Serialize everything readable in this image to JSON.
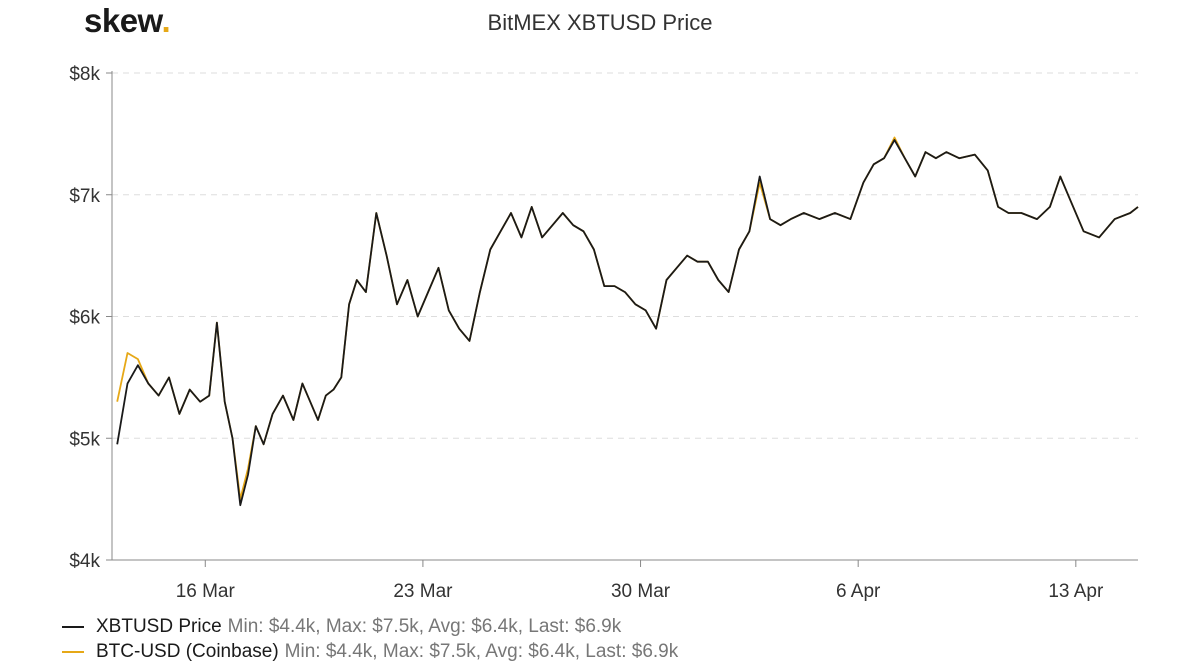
{
  "brand": {
    "name": "skew",
    "dot": "."
  },
  "chart_data": {
    "type": "line",
    "title": "BitMEX XBTUSD Price",
    "xlabel": "",
    "ylabel": "",
    "x_range": [
      "2020-03-13",
      "2020-04-15"
    ],
    "ylim": [
      4000,
      8000
    ],
    "y_ticks": [
      4000,
      5000,
      6000,
      7000,
      8000
    ],
    "y_tick_labels": [
      "$4k",
      "$5k",
      "$6k",
      "$7k",
      "$8k"
    ],
    "x_ticks": [
      "2020-03-16",
      "2020-03-23",
      "2020-03-30",
      "2020-04-06",
      "2020-04-13"
    ],
    "x_tick_labels": [
      "16 Mar",
      "23 Mar",
      "30 Mar",
      "6 Apr",
      "13 Apr"
    ],
    "grid": "horizontal dashed",
    "legend_position": "bottom-left",
    "series": [
      {
        "name": "XBTUSD Price",
        "color": "#1a1a1a",
        "stats": "Min: $4.4k, Max: $7.5k, Avg: $6.4k, Last: $6.9k",
        "points": [
          [
            "2020-03-13",
            4950
          ],
          [
            "2020-03-13",
            5450
          ],
          [
            "2020-03-13",
            5600
          ],
          [
            "2020-03-14",
            5450
          ],
          [
            "2020-03-14",
            5350
          ],
          [
            "2020-03-14",
            5500
          ],
          [
            "2020-03-15",
            5200
          ],
          [
            "2020-03-15",
            5400
          ],
          [
            "2020-03-15",
            5300
          ],
          [
            "2020-03-16",
            5350
          ],
          [
            "2020-03-16",
            5950
          ],
          [
            "2020-03-16",
            5300
          ],
          [
            "2020-03-16",
            5000
          ],
          [
            "2020-03-17",
            4450
          ],
          [
            "2020-03-17",
            4700
          ],
          [
            "2020-03-17",
            5100
          ],
          [
            "2020-03-17",
            4950
          ],
          [
            "2020-03-18",
            5200
          ],
          [
            "2020-03-18",
            5350
          ],
          [
            "2020-03-18",
            5150
          ],
          [
            "2020-03-19",
            5450
          ],
          [
            "2020-03-19",
            5300
          ],
          [
            "2020-03-19",
            5150
          ],
          [
            "2020-03-19",
            5350
          ],
          [
            "2020-03-20",
            5400
          ],
          [
            "2020-03-20",
            5500
          ],
          [
            "2020-03-20",
            6100
          ],
          [
            "2020-03-20",
            6300
          ],
          [
            "2020-03-21",
            6200
          ],
          [
            "2020-03-21",
            6850
          ],
          [
            "2020-03-21",
            6500
          ],
          [
            "2020-03-22",
            6100
          ],
          [
            "2020-03-22",
            6300
          ],
          [
            "2020-03-22",
            6000
          ],
          [
            "2020-03-23",
            6200
          ],
          [
            "2020-03-23",
            6400
          ],
          [
            "2020-03-23",
            6050
          ],
          [
            "2020-03-24",
            5900
          ],
          [
            "2020-03-24",
            5800
          ],
          [
            "2020-03-24",
            6200
          ],
          [
            "2020-03-25",
            6550
          ],
          [
            "2020-03-25",
            6700
          ],
          [
            "2020-03-25",
            6850
          ],
          [
            "2020-03-26",
            6650
          ],
          [
            "2020-03-26",
            6900
          ],
          [
            "2020-03-26",
            6650
          ],
          [
            "2020-03-27",
            6750
          ],
          [
            "2020-03-27",
            6850
          ],
          [
            "2020-03-27",
            6750
          ],
          [
            "2020-03-28",
            6700
          ],
          [
            "2020-03-28",
            6550
          ],
          [
            "2020-03-28",
            6250
          ],
          [
            "2020-03-29",
            6250
          ],
          [
            "2020-03-29",
            6200
          ],
          [
            "2020-03-29",
            6100
          ],
          [
            "2020-03-30",
            6050
          ],
          [
            "2020-03-30",
            5900
          ],
          [
            "2020-03-30",
            6300
          ],
          [
            "2020-03-31",
            6400
          ],
          [
            "2020-03-31",
            6500
          ],
          [
            "2020-03-31",
            6450
          ],
          [
            "2020-04-01",
            6450
          ],
          [
            "2020-04-01",
            6300
          ],
          [
            "2020-04-01",
            6200
          ],
          [
            "2020-04-02",
            6550
          ],
          [
            "2020-04-02",
            6700
          ],
          [
            "2020-04-02",
            7150
          ],
          [
            "2020-04-03",
            6800
          ],
          [
            "2020-04-03",
            6750
          ],
          [
            "2020-04-03",
            6800
          ],
          [
            "2020-04-04",
            6850
          ],
          [
            "2020-04-04",
            6800
          ],
          [
            "2020-04-05",
            6850
          ],
          [
            "2020-04-05",
            6800
          ],
          [
            "2020-04-06",
            7100
          ],
          [
            "2020-04-06",
            7250
          ],
          [
            "2020-04-06",
            7300
          ],
          [
            "2020-04-07",
            7450
          ],
          [
            "2020-04-07",
            7300
          ],
          [
            "2020-04-07",
            7150
          ],
          [
            "2020-04-08",
            7350
          ],
          [
            "2020-04-08",
            7300
          ],
          [
            "2020-04-08",
            7350
          ],
          [
            "2020-04-09",
            7300
          ],
          [
            "2020-04-09",
            7330
          ],
          [
            "2020-04-10",
            7200
          ],
          [
            "2020-04-10",
            6900
          ],
          [
            "2020-04-10",
            6850
          ],
          [
            "2020-04-11",
            6850
          ],
          [
            "2020-04-11",
            6800
          ],
          [
            "2020-04-12",
            6900
          ],
          [
            "2020-04-12",
            7150
          ],
          [
            "2020-04-12",
            6950
          ],
          [
            "2020-04-13",
            6700
          ],
          [
            "2020-04-13",
            6650
          ],
          [
            "2020-04-14",
            6800
          ],
          [
            "2020-04-14",
            6850
          ],
          [
            "2020-04-15",
            6900
          ]
        ]
      },
      {
        "name": "BTC-USD (Coinbase)",
        "color": "#e6a817",
        "stats": "Min: $4.4k, Max: $7.5k, Avg: $6.4k, Last: $6.9k",
        "points": [
          [
            "2020-03-13",
            5300
          ],
          [
            "2020-03-13",
            5700
          ],
          [
            "2020-03-13",
            5650
          ],
          [
            "2020-03-14",
            5450
          ],
          [
            "2020-03-14",
            5350
          ],
          [
            "2020-03-14",
            5500
          ],
          [
            "2020-03-15",
            5200
          ],
          [
            "2020-03-15",
            5400
          ],
          [
            "2020-03-15",
            5300
          ],
          [
            "2020-03-16",
            5350
          ],
          [
            "2020-03-16",
            5950
          ],
          [
            "2020-03-16",
            5300
          ],
          [
            "2020-03-16",
            5000
          ],
          [
            "2020-03-17",
            4500
          ],
          [
            "2020-03-17",
            4750
          ],
          [
            "2020-03-17",
            5100
          ],
          [
            "2020-03-17",
            4950
          ],
          [
            "2020-03-18",
            5200
          ],
          [
            "2020-03-18",
            5350
          ],
          [
            "2020-03-18",
            5150
          ],
          [
            "2020-03-19",
            5450
          ],
          [
            "2020-03-19",
            5300
          ],
          [
            "2020-03-19",
            5150
          ],
          [
            "2020-03-19",
            5350
          ],
          [
            "2020-03-20",
            5400
          ],
          [
            "2020-03-20",
            5500
          ],
          [
            "2020-03-20",
            6100
          ],
          [
            "2020-03-20",
            6300
          ],
          [
            "2020-03-21",
            6200
          ],
          [
            "2020-03-21",
            6850
          ],
          [
            "2020-03-21",
            6500
          ],
          [
            "2020-03-22",
            6100
          ],
          [
            "2020-03-22",
            6300
          ],
          [
            "2020-03-22",
            6000
          ],
          [
            "2020-03-23",
            6200
          ],
          [
            "2020-03-23",
            6400
          ],
          [
            "2020-03-23",
            6050
          ],
          [
            "2020-03-24",
            5900
          ],
          [
            "2020-03-24",
            5800
          ],
          [
            "2020-03-24",
            6200
          ],
          [
            "2020-03-25",
            6550
          ],
          [
            "2020-03-25",
            6700
          ],
          [
            "2020-03-25",
            6850
          ],
          [
            "2020-03-26",
            6650
          ],
          [
            "2020-03-26",
            6900
          ],
          [
            "2020-03-26",
            6650
          ],
          [
            "2020-03-27",
            6750
          ],
          [
            "2020-03-27",
            6850
          ],
          [
            "2020-03-27",
            6750
          ],
          [
            "2020-03-28",
            6700
          ],
          [
            "2020-03-28",
            6550
          ],
          [
            "2020-03-28",
            6250
          ],
          [
            "2020-03-29",
            6250
          ],
          [
            "2020-03-29",
            6200
          ],
          [
            "2020-03-29",
            6100
          ],
          [
            "2020-03-30",
            6050
          ],
          [
            "2020-03-30",
            5900
          ],
          [
            "2020-03-30",
            6300
          ],
          [
            "2020-03-31",
            6400
          ],
          [
            "2020-03-31",
            6500
          ],
          [
            "2020-03-31",
            6450
          ],
          [
            "2020-04-01",
            6450
          ],
          [
            "2020-04-01",
            6300
          ],
          [
            "2020-04-01",
            6200
          ],
          [
            "2020-04-02",
            6550
          ],
          [
            "2020-04-02",
            6700
          ],
          [
            "2020-04-02",
            7100
          ],
          [
            "2020-04-03",
            6800
          ],
          [
            "2020-04-03",
            6750
          ],
          [
            "2020-04-03",
            6800
          ],
          [
            "2020-04-04",
            6850
          ],
          [
            "2020-04-04",
            6800
          ],
          [
            "2020-04-05",
            6850
          ],
          [
            "2020-04-05",
            6800
          ],
          [
            "2020-04-06",
            7100
          ],
          [
            "2020-04-06",
            7250
          ],
          [
            "2020-04-06",
            7300
          ],
          [
            "2020-04-07",
            7470
          ],
          [
            "2020-04-07",
            7300
          ],
          [
            "2020-04-07",
            7150
          ],
          [
            "2020-04-08",
            7350
          ],
          [
            "2020-04-08",
            7300
          ],
          [
            "2020-04-08",
            7350
          ],
          [
            "2020-04-09",
            7300
          ],
          [
            "2020-04-09",
            7330
          ],
          [
            "2020-04-10",
            7200
          ],
          [
            "2020-04-10",
            6900
          ],
          [
            "2020-04-10",
            6850
          ],
          [
            "2020-04-11",
            6850
          ],
          [
            "2020-04-11",
            6800
          ],
          [
            "2020-04-12",
            6900
          ],
          [
            "2020-04-12",
            7150
          ],
          [
            "2020-04-12",
            6950
          ],
          [
            "2020-04-13",
            6700
          ],
          [
            "2020-04-13",
            6650
          ],
          [
            "2020-04-14",
            6800
          ],
          [
            "2020-04-14",
            6850
          ],
          [
            "2020-04-15",
            6900
          ]
        ]
      }
    ]
  }
}
